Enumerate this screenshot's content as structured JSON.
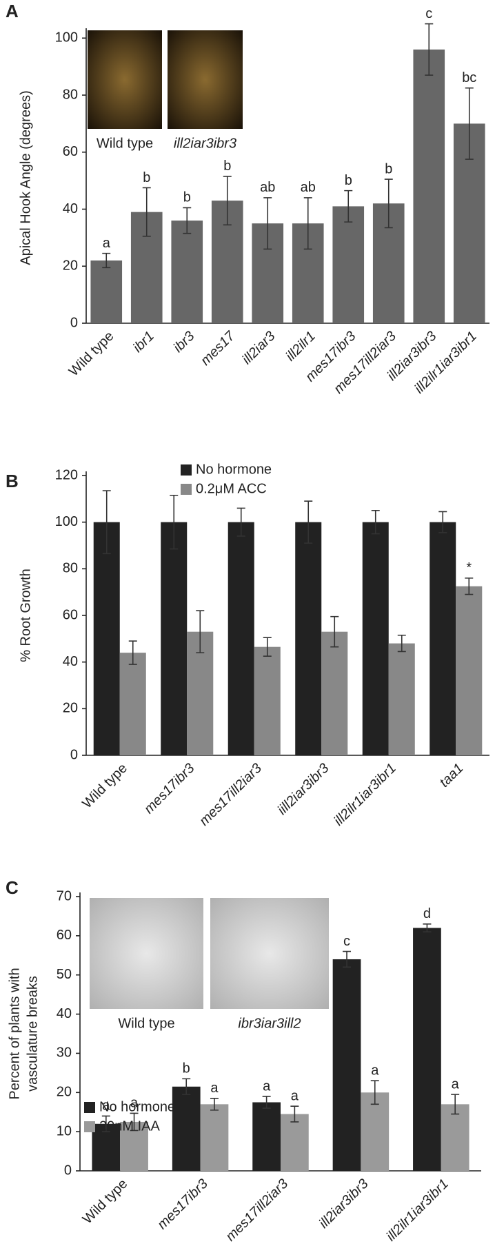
{
  "chart_data": [
    {
      "type": "bar",
      "panel": "A",
      "ylabel": "Apical Hook Angle (degrees)",
      "categories": [
        "Wild type",
        "ibr1",
        "ibr3",
        "mes17",
        "ill2iar3",
        "ill2ilr1",
        "mes17ibr3",
        "mes17ill2iar3",
        "ill2iar3ibr3",
        "ill2ilr1iar3ibr1"
      ],
      "series": [
        {
          "color": "#676767",
          "values": [
            22,
            39,
            36,
            43,
            35,
            35,
            41,
            42,
            96,
            70
          ],
          "errors": [
            2.5,
            8.5,
            4.5,
            8.5,
            9,
            9,
            5.5,
            8.5,
            9,
            12.5
          ],
          "labels": [
            "a",
            "b",
            "b",
            "b",
            "ab",
            "ab",
            "b",
            "b",
            "c",
            "bc"
          ]
        }
      ],
      "ylim": [
        0,
        102
      ],
      "yticks": [
        0,
        20,
        40,
        60,
        80,
        100
      ],
      "insets": [
        {
          "label": "Wild type"
        },
        {
          "label": "ill2iar3ibr3"
        }
      ]
    },
    {
      "type": "bar",
      "panel": "B",
      "ylabel": "% Root Growth",
      "categories": [
        "Wild type",
        "mes17ibr3",
        "mes17ill2iar3",
        "iill2iar3ibr3",
        "ill2ilr1iar3ibr1",
        "taa1"
      ],
      "series": [
        {
          "name": "No hormone",
          "color": "#222222",
          "values": [
            100,
            100,
            100,
            100,
            100,
            100
          ],
          "errors": [
            13.5,
            11.5,
            6,
            9,
            5,
            4.5
          ]
        },
        {
          "name": "0.2μM ACC",
          "color": "#888888",
          "values": [
            44,
            53,
            46.5,
            53,
            48,
            72.5
          ],
          "errors": [
            5,
            9,
            4,
            6.5,
            3.5,
            3.5
          ],
          "labels": [
            null,
            null,
            null,
            null,
            null,
            "*"
          ]
        }
      ],
      "ylim": [
        0,
        120
      ],
      "yticks": [
        0,
        20,
        40,
        60,
        80,
        100,
        120
      ]
    },
    {
      "type": "bar",
      "panel": "C",
      "ylabel": [
        "Percent of plants with",
        "vasculature breaks"
      ],
      "categories": [
        "Wild type",
        "mes17ibr3",
        "mes17ill2iar3",
        "ill2iar3ibr3",
        "ill2ilr1iar3ibr1"
      ],
      "series": [
        {
          "name": "No hormone",
          "color": "#222222",
          "values": [
            12,
            21.5,
            17.5,
            54,
            62
          ],
          "errors": [
            2,
            2,
            1.5,
            2,
            1
          ],
          "labels": [
            "a",
            "b",
            "a",
            "c",
            "d"
          ]
        },
        {
          "name": "20nM IAA",
          "color": "#9a9a9a",
          "values": [
            12.5,
            17,
            14.5,
            20,
            17
          ],
          "errors": [
            2.2,
            1.5,
            2,
            3,
            2.5
          ],
          "labels": [
            "a",
            "a",
            "a",
            "a",
            "a"
          ]
        }
      ],
      "ylim": [
        0,
        70
      ],
      "yticks": [
        0,
        10,
        20,
        30,
        40,
        50,
        60,
        70
      ],
      "insets": [
        {
          "label": "Wild type"
        },
        {
          "label": "ibr3iar3ill2"
        }
      ]
    }
  ]
}
